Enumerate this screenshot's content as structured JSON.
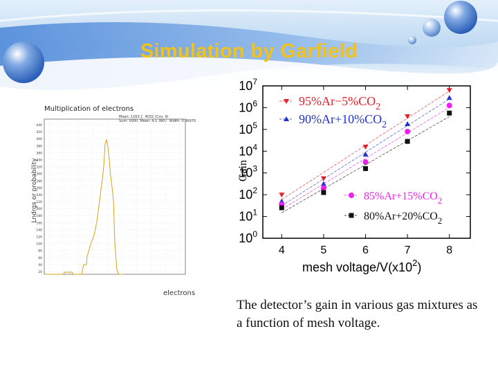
{
  "slide": {
    "title": "Simulation by Garfield",
    "caption": " The detector’s gain in various gas mixtures as a function of mesh voltage.",
    "title_color": "#f2c21b"
  },
  "left_plot": {
    "title": "Multiplication of electrons",
    "stats_text": "Mean: 1163.1  4032 (Cov: 9)\nSum: 5000, Mean: 4.1 3807  Width: 0.86970",
    "y_label": "Lndrgs or probability",
    "x_label": "electrons",
    "side_text": "...",
    "y_ticks": [
      "440",
      "420",
      "400",
      "380",
      "360",
      "340",
      "320",
      "300",
      "280",
      "260",
      "240",
      "220",
      "200",
      "180",
      "160",
      "140",
      "120",
      "100",
      "80",
      "60",
      "40",
      "20"
    ],
    "line_color": "#d4a21a"
  },
  "chart_data": {
    "type": "scatter",
    "xlabel": "mesh voltage/V(x10",
    "xlabel_exponent": "2",
    "xlabel_suffix": ")",
    "ylabel": "Gain",
    "x_ticks": [
      "4",
      "5",
      "6",
      "7",
      "8"
    ],
    "y_tick_exponents": [
      "0",
      "1",
      "2",
      "3",
      "4",
      "5",
      "6",
      "7"
    ],
    "xlim": [
      3.55,
      8.5
    ],
    "ylim_log10": [
      0,
      7
    ],
    "log_y": true,
    "series": [
      {
        "name": "95%Ar−5%CO2",
        "marker": "triangle-down",
        "color": "#e8202a",
        "x": [
          4,
          5,
          6,
          7,
          8
        ],
        "y_log10": [
          2.0,
          2.75,
          4.2,
          5.6,
          6.8
        ]
      },
      {
        "name": "90%Ar+10%CO2",
        "marker": "triangle-up",
        "color": "#2233cc",
        "x": [
          4,
          5,
          6,
          7,
          8
        ],
        "y_log10": [
          1.7,
          2.5,
          3.85,
          5.25,
          6.45
        ]
      },
      {
        "name": "85%Ar+15%CO2",
        "marker": "circle",
        "color": "#ee22ee",
        "x": [
          4,
          5,
          6,
          7,
          8
        ],
        "y_log10": [
          1.55,
          2.3,
          3.5,
          4.9,
          6.1
        ]
      },
      {
        "name": "80%Ar+20%CO2",
        "marker": "square",
        "color": "#111111",
        "x": [
          4,
          5,
          6,
          7,
          8
        ],
        "y_log10": [
          1.4,
          2.1,
          3.2,
          4.45,
          5.75
        ]
      }
    ],
    "legend_labels": [
      {
        "main": "95%Ar−5%CO",
        "sub": "2"
      },
      {
        "main": "90%Ar+10%CO",
        "sub": "2"
      },
      {
        "main": "85%Ar+15%CO",
        "sub": "2"
      },
      {
        "main": "80%Ar+20%CO",
        "sub": "2"
      }
    ]
  }
}
